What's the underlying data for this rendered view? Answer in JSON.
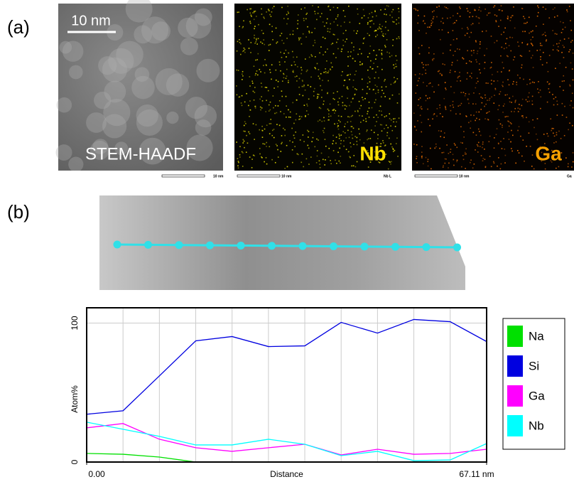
{
  "panels": {
    "a": "(a)",
    "b": "(b)"
  },
  "images": {
    "scale_bar": "10 nm",
    "haadf_label": "STEM-HAADF",
    "nb_label": "Nb",
    "ga_label": "Ga",
    "small_scale_1": "10 nm",
    "small_scale_2": "10 nm",
    "small_scale_3": "10 nm",
    "nb_tag": "Nb L",
    "ga_tag": "Ga"
  },
  "chart_data": {
    "type": "line",
    "xlabel": "Distance",
    "ylabel": "Atom%",
    "x": [
      0,
      6.1,
      12.2,
      18.3,
      24.4,
      30.5,
      36.6,
      42.7,
      48.8,
      54.9,
      61.0,
      67.11
    ],
    "xlim": [
      0,
      67.11
    ],
    "xticks": [
      {
        "value": 0,
        "label": "0.00"
      },
      {
        "value": 67.11,
        "label": "67.11 nm"
      }
    ],
    "ylim": [
      0,
      111
    ],
    "yticks": [
      0,
      100
    ],
    "grid": true,
    "legend": "right",
    "series": [
      {
        "name": "Na",
        "color": "#00e000",
        "values": [
          6.2,
          5.6,
          3.6,
          0,
          0,
          0,
          0,
          0,
          0,
          0,
          0,
          0
        ]
      },
      {
        "name": "Si",
        "color": "#0000e0",
        "values": [
          34.4,
          36.9,
          62,
          87.2,
          90.3,
          83.1,
          83.6,
          100.5,
          92.8,
          102.6,
          101,
          86.7
        ]
      },
      {
        "name": "Ga",
        "color": "#ff00ff",
        "values": [
          24.6,
          27.7,
          16.4,
          10.3,
          7.7,
          10.3,
          12.8,
          5.1,
          9.2,
          5.6,
          6.2,
          9.2
        ]
      },
      {
        "name": "Nb",
        "color": "#00ffff",
        "values": [
          28.7,
          23.6,
          18.5,
          12.3,
          12.3,
          16.4,
          12.8,
          4.6,
          7.7,
          1,
          1.5,
          13.3
        ]
      }
    ]
  }
}
